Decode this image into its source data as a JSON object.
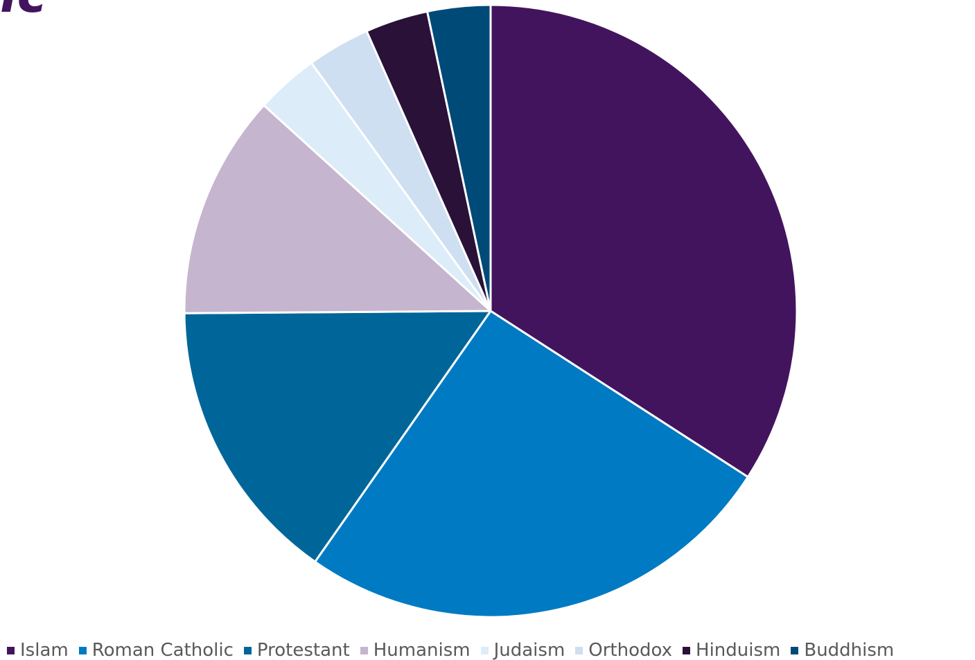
{
  "title_fragment": "ic",
  "title_color": "#43145e",
  "chart_data": {
    "type": "pie",
    "title": "",
    "slices": [
      {
        "label": "Islam",
        "value": 36,
        "color": "#43145e"
      },
      {
        "label": "Roman Catholic",
        "value": 27,
        "color": "#007ac3"
      },
      {
        "label": "Protestant",
        "value": 16,
        "color": "#006699"
      },
      {
        "label": "Humanism",
        "value": 12.5,
        "color": "#c5b5ce"
      },
      {
        "label": "Judaism",
        "value": 3.5,
        "color": "#dcecf8"
      },
      {
        "label": "Orthodox",
        "value": 3.5,
        "color": "#cddff0"
      },
      {
        "label": "Hinduism",
        "value": 3.5,
        "color": "#2a1138"
      },
      {
        "label": "Buddhism",
        "value": 3.5,
        "color": "#004a78"
      }
    ],
    "start_angle": "12 o'clock",
    "direction": "clockwise",
    "legend_position": "bottom",
    "slice_border_color": "#ffffff"
  }
}
